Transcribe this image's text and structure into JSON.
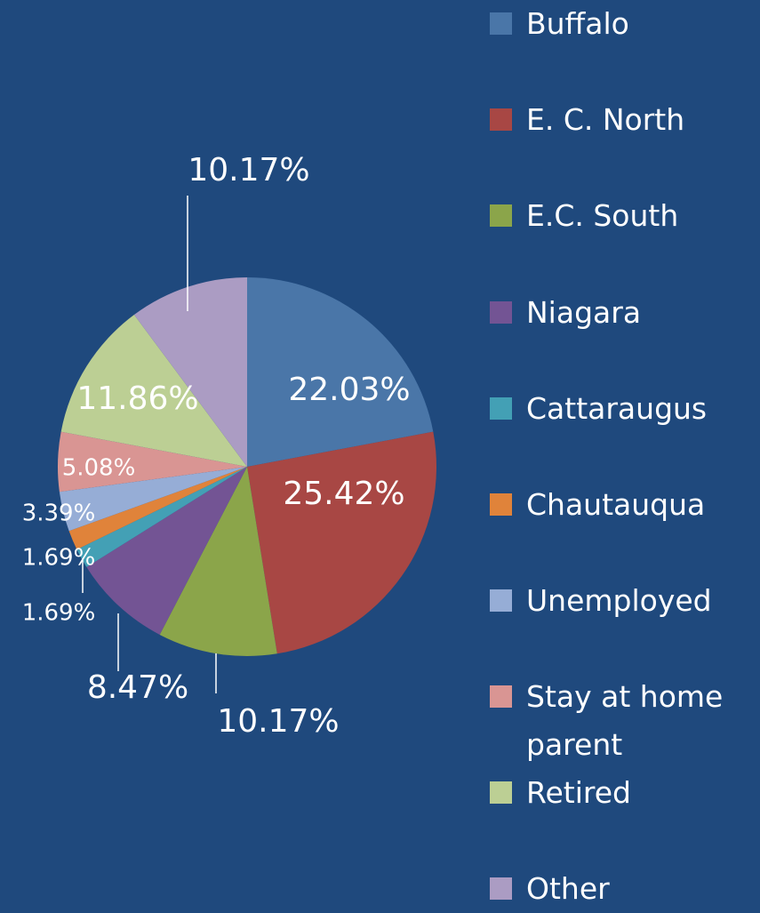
{
  "chart_data": {
    "type": "pie",
    "categories": [
      "Buffalo",
      "E. C. North",
      "E.C. South",
      "Niagara",
      "Cattaraugus",
      "Chautauqua",
      "Unemployed",
      "Stay at home parent",
      "Retired",
      "Other"
    ],
    "values": [
      22.03,
      25.42,
      10.17,
      8.47,
      1.69,
      1.69,
      3.39,
      5.08,
      11.86,
      10.17
    ],
    "value_labels": [
      "22.03%",
      "25.42%",
      "10.17%",
      "8.47%",
      "1.69%",
      "1.69%",
      "3.39%",
      "5.08%",
      "11.86%",
      "10.17%"
    ],
    "colors": [
      "#4a76a8",
      "#a84744",
      "#8ba54a",
      "#735494",
      "#43a0b5",
      "#e0833a",
      "#96add6",
      "#d99593",
      "#bccf94",
      "#ab9cc3"
    ],
    "legend": "right"
  }
}
